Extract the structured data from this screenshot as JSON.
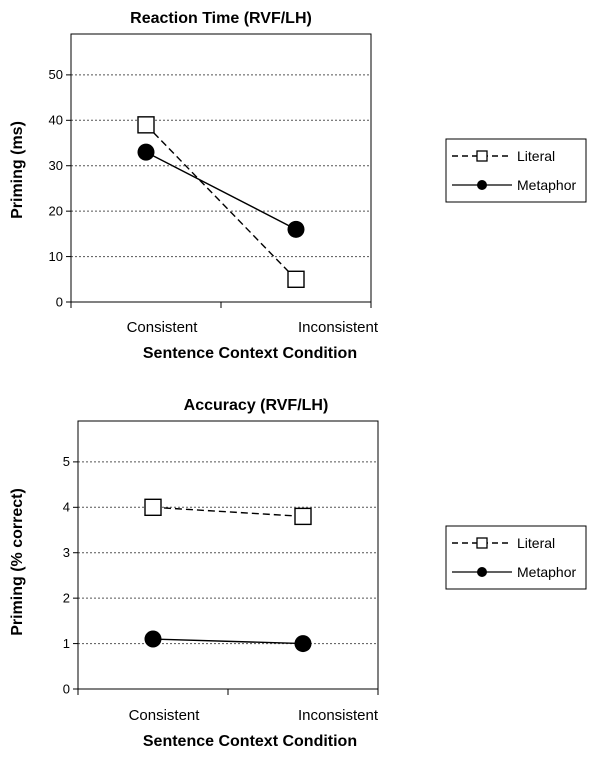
{
  "chart_data": [
    {
      "type": "line",
      "title": "Reaction Time (RVF/LH)",
      "xlabel": "Sentence Context Condition",
      "ylabel": "Priming (ms)",
      "categories": [
        "Consistent",
        "Inconsistent"
      ],
      "ylim": [
        0,
        50
      ],
      "yticks": [
        "0",
        "10",
        "20",
        "30",
        "40",
        "50"
      ],
      "grid": true,
      "legend_position": "right",
      "series": [
        {
          "name": "Literal",
          "values": [
            39,
            5
          ],
          "line_style": "dashed",
          "marker": "open-square"
        },
        {
          "name": "Metaphor",
          "values": [
            33,
            16
          ],
          "line_style": "solid",
          "marker": "filled-circle"
        }
      ]
    },
    {
      "type": "line",
      "title": "Accuracy (RVF/LH)",
      "xlabel": "Sentence Context Condition",
      "ylabel": "Priming (% correct)",
      "categories": [
        "Consistent",
        "Inconsistent"
      ],
      "ylim": [
        0,
        5
      ],
      "yticks": [
        "0",
        "1",
        "2",
        "3",
        "4",
        "5"
      ],
      "grid": true,
      "legend_position": "right",
      "series": [
        {
          "name": "Literal",
          "values": [
            4.0,
            3.8
          ],
          "line_style": "dashed",
          "marker": "open-square"
        },
        {
          "name": "Metaphor",
          "values": [
            1.1,
            1.0
          ],
          "line_style": "solid",
          "marker": "filled-circle"
        }
      ]
    }
  ]
}
